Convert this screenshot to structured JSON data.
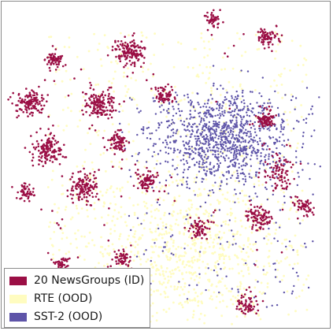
{
  "chart_data": {
    "type": "scatter",
    "title": "",
    "xlabel": "",
    "ylabel": "",
    "grid": false,
    "legend_position": "bottom-left",
    "series": [
      {
        "name": "20 NewsGroups (ID)",
        "color": "#9b0f45",
        "clusters": [
          {
            "center": [
              270,
              25
            ],
            "spread": 4,
            "count": 40
          },
          {
            "center": [
              165,
              65
            ],
            "spread": 9,
            "count": 150
          },
          {
            "center": [
              68,
              75
            ],
            "spread": 6,
            "count": 70
          },
          {
            "center": [
              340,
              48
            ],
            "spread": 7,
            "count": 70
          },
          {
            "center": [
              38,
              130
            ],
            "spread": 8,
            "count": 130
          },
          {
            "center": [
              125,
              132
            ],
            "spread": 9,
            "count": 140
          },
          {
            "center": [
              208,
              122
            ],
            "spread": 6,
            "count": 60
          },
          {
            "center": [
              338,
              152
            ],
            "spread": 5,
            "count": 90
          },
          {
            "center": [
              60,
              190
            ],
            "spread": 8,
            "count": 130
          },
          {
            "center": [
              150,
              180
            ],
            "spread": 6,
            "count": 70
          },
          {
            "center": [
              108,
              237
            ],
            "spread": 9,
            "count": 120
          },
          {
            "center": [
              186,
              230
            ],
            "spread": 6,
            "count": 70
          },
          {
            "center": [
              32,
              245
            ],
            "spread": 6,
            "count": 50
          },
          {
            "center": [
              355,
              220
            ],
            "spread": 10,
            "count": 80
          },
          {
            "center": [
              328,
              276
            ],
            "spread": 8,
            "count": 90
          },
          {
            "center": [
              386,
              262
            ],
            "spread": 6,
            "count": 50
          },
          {
            "center": [
              252,
              290
            ],
            "spread": 6,
            "count": 60
          },
          {
            "center": [
              155,
              328
            ],
            "spread": 5,
            "count": 50
          },
          {
            "center": [
              78,
              335
            ],
            "spread": 5,
            "count": 40
          },
          {
            "center": [
              315,
              386
            ],
            "spread": 7,
            "count": 60
          }
        ],
        "scattered_count": 420
      },
      {
        "name": "RTE (OOD)",
        "color": "#fffcc0",
        "region": {
          "x_range": [
            60,
            390
          ],
          "y_range": [
            40,
            405
          ]
        },
        "dense_region_center": [
          240,
          320
        ],
        "count": 1300
      },
      {
        "name": "SST-2 (OOD)",
        "color": "#5e54a8",
        "clusters": [
          {
            "center": [
              285,
              175
            ],
            "spread": 38,
            "count": 1000
          }
        ],
        "scattered_count": 220
      }
    ]
  }
}
